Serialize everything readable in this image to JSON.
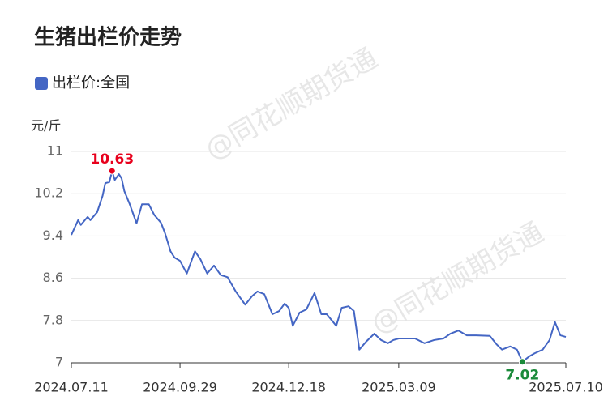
{
  "chart_data": {
    "type": "line",
    "title": "生猪出栏价走势",
    "y_label": "元/斤",
    "watermark": "@同花顺期货通",
    "x": [
      "2024.07.11",
      "2024.07.16",
      "2024.07.18",
      "2024.07.23",
      "2024.07.25",
      "2024.07.30",
      "2024.08.03",
      "2024.08.05",
      "2024.08.08",
      "2024.08.10",
      "2024.08.12",
      "2024.08.15",
      "2024.08.17",
      "2024.08.19",
      "2024.08.23",
      "2024.08.28",
      "2024.09.01",
      "2024.09.06",
      "2024.09.10",
      "2024.09.15",
      "2024.09.18",
      "2024.09.22",
      "2024.09.25",
      "2024.09.29",
      "2024.10.04",
      "2024.10.10",
      "2024.10.14",
      "2024.10.19",
      "2024.10.24",
      "2024.10.29",
      "2024.11.03",
      "2024.11.09",
      "2024.11.16",
      "2024.11.21",
      "2024.11.25",
      "2024.11.30",
      "2024.12.06",
      "2024.12.11",
      "2024.12.15",
      "2024.12.18",
      "2024.12.21",
      "2024.12.26",
      "2024.12.31",
      "2025.01.06",
      "2025.01.11",
      "2025.01.15",
      "2025.01.22",
      "2025.01.26",
      "2025.01.31",
      "2025.02.04",
      "2025.02.08",
      "2025.02.13",
      "2025.02.19",
      "2025.02.24",
      "2025.03.01",
      "2025.03.05",
      "2025.03.09",
      "2025.03.14",
      "2025.03.21",
      "2025.03.28",
      "2025.04.04",
      "2025.04.11",
      "2025.04.16",
      "2025.04.22",
      "2025.04.28",
      "2025.05.05",
      "2025.05.15",
      "2025.05.20",
      "2025.05.24",
      "2025.05.30",
      "2025.06.04",
      "2025.06.08",
      "2025.06.13",
      "2025.06.17",
      "2025.06.23",
      "2025.06.28",
      "2025.07.02",
      "2025.07.06",
      "2025.07.10"
    ],
    "series": [
      {
        "name": "出栏价:全国",
        "color": "#4466c4",
        "values": [
          9.42,
          9.7,
          9.61,
          9.76,
          9.7,
          9.85,
          10.16,
          10.4,
          10.42,
          10.63,
          10.46,
          10.57,
          10.49,
          10.25,
          10.0,
          9.64,
          10.0,
          10.0,
          9.8,
          9.65,
          9.45,
          9.11,
          8.99,
          8.93,
          8.69,
          9.11,
          8.96,
          8.69,
          8.84,
          8.66,
          8.62,
          8.35,
          8.1,
          8.26,
          8.35,
          8.3,
          7.92,
          7.98,
          8.12,
          8.04,
          7.7,
          7.95,
          8.01,
          8.32,
          7.92,
          7.92,
          7.7,
          8.04,
          8.07,
          7.98,
          7.25,
          7.4,
          7.55,
          7.43,
          7.37,
          7.43,
          7.46,
          7.46,
          7.46,
          7.37,
          7.43,
          7.46,
          7.55,
          7.61,
          7.52,
          7.52,
          7.51,
          7.35,
          7.25,
          7.31,
          7.25,
          7.02,
          7.12,
          7.18,
          7.25,
          7.43,
          7.77,
          7.52,
          7.49
        ]
      }
    ],
    "highlights": [
      {
        "x": "2024.08.10",
        "value": 10.63,
        "color": "#e8001c"
      },
      {
        "x": "2025.06.08",
        "value": 7.02,
        "color": "#1a8a3a"
      }
    ],
    "ylim": [
      7,
      11
    ],
    "yticks": [
      7,
      7.8,
      8.6,
      9.4,
      10.2,
      11
    ],
    "xlim": [
      "2024.07.11",
      "2025.07.10"
    ],
    "xticks": [
      "2024.07.11",
      "2024.09.29",
      "2024.12.18",
      "2025.03.09",
      "2025.07.10"
    ],
    "grid": true
  }
}
